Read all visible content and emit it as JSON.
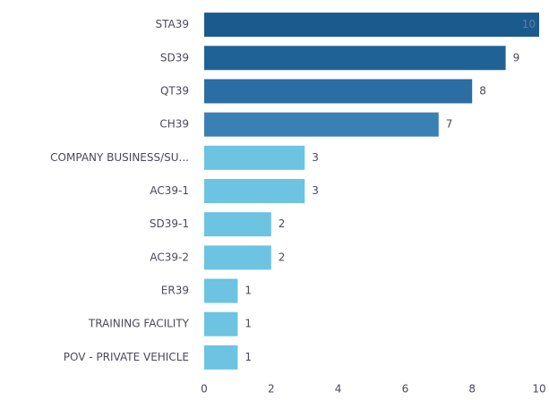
{
  "chart_data": {
    "type": "hbar",
    "categories": [
      "STA39",
      "SD39",
      "QT39",
      "CH39",
      "COMPANY BUSINESS/SU...",
      "AC39-1",
      "SD39-1",
      "AC39-2",
      "ER39",
      "TRAINING FACILITY",
      "POV - PRIVATE VEHICLE"
    ],
    "values": [
      10,
      9,
      8,
      7,
      3,
      3,
      2,
      2,
      1,
      1,
      1
    ],
    "colors": [
      "#1b5a8c",
      "#1f6396",
      "#2a6ea3",
      "#3b80b4",
      "#6cc3e2",
      "#6cc3e2",
      "#6cc3e2",
      "#6cc3e2",
      "#6cc3e2",
      "#6cc3e2",
      "#6cc3e2"
    ],
    "xlim": [
      0,
      10
    ],
    "xticks": [
      0,
      2,
      4,
      6,
      8,
      10
    ],
    "grid": false,
    "data_labels": true
  }
}
